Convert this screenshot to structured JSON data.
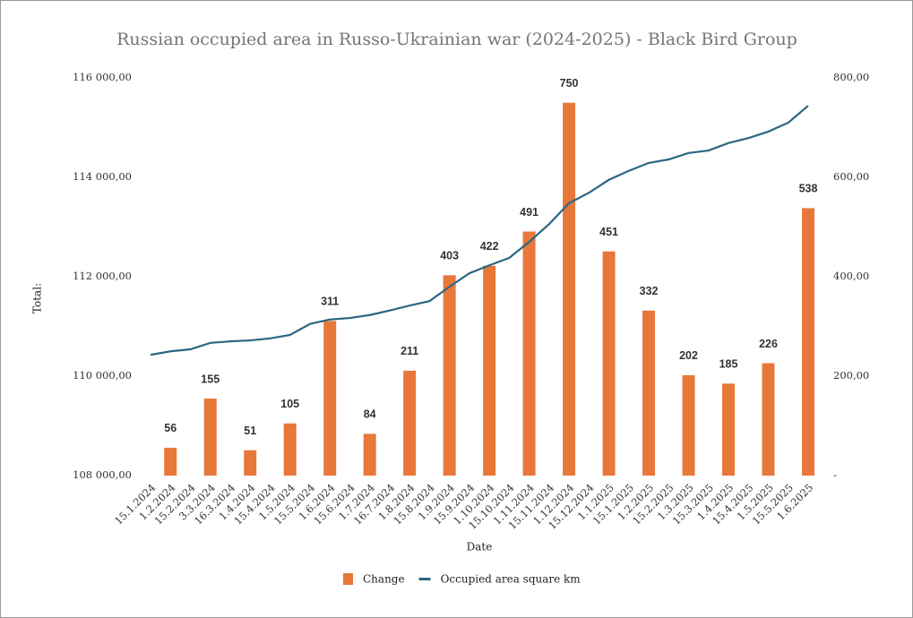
{
  "chart_data": {
    "type": "combo",
    "title": "Russian occupied area in Russo-Ukrainian war (2024-2025) - Black Bird Group",
    "y_label": "Total:",
    "x_label": "Date",
    "categories": [
      "15.1.2024",
      "1.2.2024",
      "15.2.2024",
      "3.3.2024",
      "16.3.2024",
      "1.4.2024",
      "15.4.2024",
      "1.5.2024",
      "15.5.2024",
      "1.6.2024",
      "15.6.2024",
      "1.7.2024",
      "16.7.2024",
      "1.8.2024",
      "15.8.2024",
      "1.9.2024",
      "15.9.2024",
      "1.10.2024",
      "15.10.2024",
      "1.11.2024",
      "15.11.2024",
      "1.12.2024",
      "15.12.2024",
      "1.1.2025",
      "15.1.2025",
      "1.2.2025",
      "15.2.2025",
      "1.3.2025",
      "15.3.2025",
      "1.4.2025",
      "15.4.2025",
      "1.5.2025",
      "15.5.2025",
      "1.6.2025"
    ],
    "series": [
      {
        "name": "Change",
        "type": "bar",
        "axis": "y2",
        "color": "#e8773a",
        "values": [
          null,
          56,
          null,
          155,
          null,
          51,
          null,
          105,
          null,
          311,
          null,
          84,
          null,
          211,
          null,
          403,
          null,
          422,
          null,
          491,
          null,
          750,
          null,
          451,
          null,
          332,
          null,
          202,
          null,
          185,
          null,
          226,
          null,
          538
        ]
      },
      {
        "name": "Occupied area square km",
        "type": "line",
        "axis": "y",
        "color": "#2a6782",
        "values": [
          110430,
          110500,
          110540,
          110670,
          110700,
          110720,
          110760,
          110830,
          111050,
          111140,
          111170,
          111230,
          111320,
          111420,
          111510,
          111800,
          112070,
          112230,
          112380,
          112700,
          113060,
          113480,
          113690,
          113950,
          114130,
          114290,
          114360,
          114490,
          114540,
          114690,
          114790,
          114920,
          115100,
          115440
        ]
      }
    ],
    "ylim": [
      108000,
      116000
    ],
    "yticks": [
      {
        "value": 108000,
        "label": "108 000,00"
      },
      {
        "value": 110000,
        "label": "110 000,00"
      },
      {
        "value": 112000,
        "label": "112 000,00"
      },
      {
        "value": 114000,
        "label": "114 000,00"
      },
      {
        "value": 116000,
        "label": "116 000,00"
      }
    ],
    "y2lim": [
      0,
      800
    ],
    "y2ticks": [
      {
        "value": 0,
        "label": "-"
      },
      {
        "value": 200,
        "label": "200,00"
      },
      {
        "value": 400,
        "label": "400,00"
      },
      {
        "value": 600,
        "label": "600,00"
      },
      {
        "value": 800,
        "label": "800,00"
      }
    ],
    "legend": "bottom"
  }
}
